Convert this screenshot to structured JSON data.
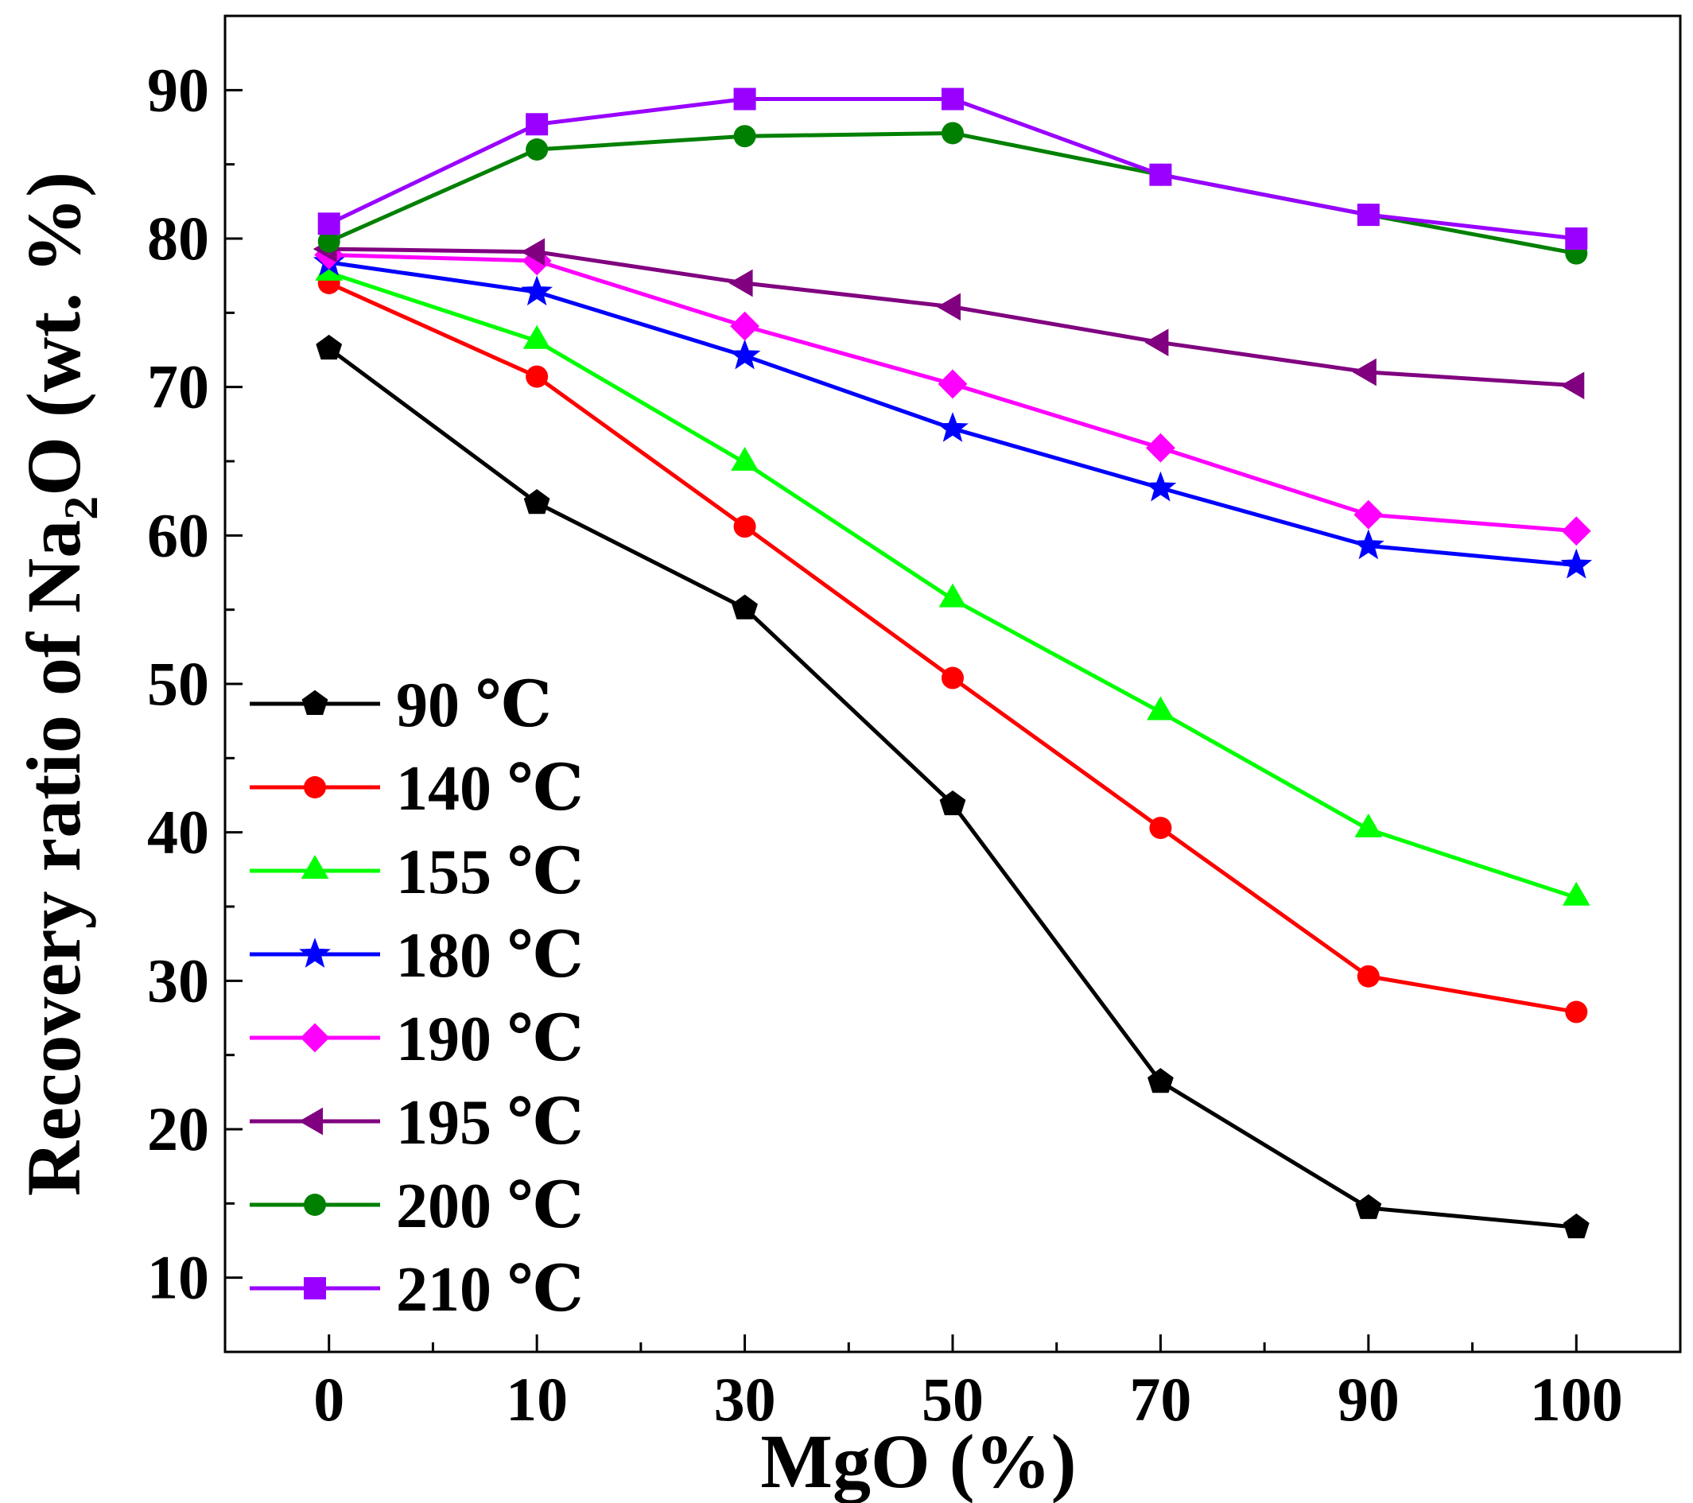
{
  "chart_data": {
    "type": "line",
    "title": "",
    "xlabel": "MgO (%)",
    "ylabel_main": "Recovery ratio of Na",
    "ylabel_sub": "2",
    "ylabel_tail": "O  (wt. %)",
    "categories": [
      "0",
      "10",
      "30",
      "50",
      "70",
      "90",
      "100"
    ],
    "ylim": [
      5,
      95
    ],
    "yticks": [
      10,
      20,
      30,
      40,
      50,
      60,
      70,
      80,
      90
    ],
    "grid": false,
    "legend_placement": "bottom-left",
    "series": [
      {
        "name": "90 ℃",
        "color": "#000000",
        "marker": "pentagon",
        "values": [
          72.6,
          62.2,
          55.1,
          41.9,
          23.2,
          14.7,
          13.4
        ]
      },
      {
        "name": "140 ℃",
        "color": "#ff0000",
        "marker": "circle",
        "values": [
          77.0,
          70.7,
          60.6,
          50.4,
          40.3,
          30.3,
          27.9
        ]
      },
      {
        "name": "155 ℃",
        "color": "#00ff00",
        "marker": "triangle-up",
        "values": [
          77.7,
          73.1,
          64.9,
          55.7,
          48.1,
          40.2,
          35.6
        ]
      },
      {
        "name": "180 ℃",
        "color": "#0000ff",
        "marker": "star",
        "values": [
          78.4,
          76.4,
          72.1,
          67.2,
          63.2,
          59.3,
          58.0
        ]
      },
      {
        "name": "190 ℃",
        "color": "#ff00ff",
        "marker": "diamond",
        "values": [
          78.9,
          78.5,
          74.1,
          70.2,
          65.9,
          61.4,
          60.3
        ]
      },
      {
        "name": "195 ℃",
        "color": "#800080",
        "marker": "triangle-left",
        "values": [
          79.3,
          79.1,
          77.0,
          75.4,
          73.0,
          71.0,
          70.1
        ]
      },
      {
        "name": "200 ℃",
        "color": "#008000",
        "marker": "circle",
        "values": [
          79.8,
          86.0,
          86.9,
          87.1,
          84.3,
          81.6,
          79.0
        ]
      },
      {
        "name": "210 ℃",
        "color": "#9900ff",
        "marker": "square",
        "values": [
          81.0,
          87.7,
          89.4,
          89.4,
          84.3,
          81.6,
          80.0
        ]
      }
    ]
  }
}
